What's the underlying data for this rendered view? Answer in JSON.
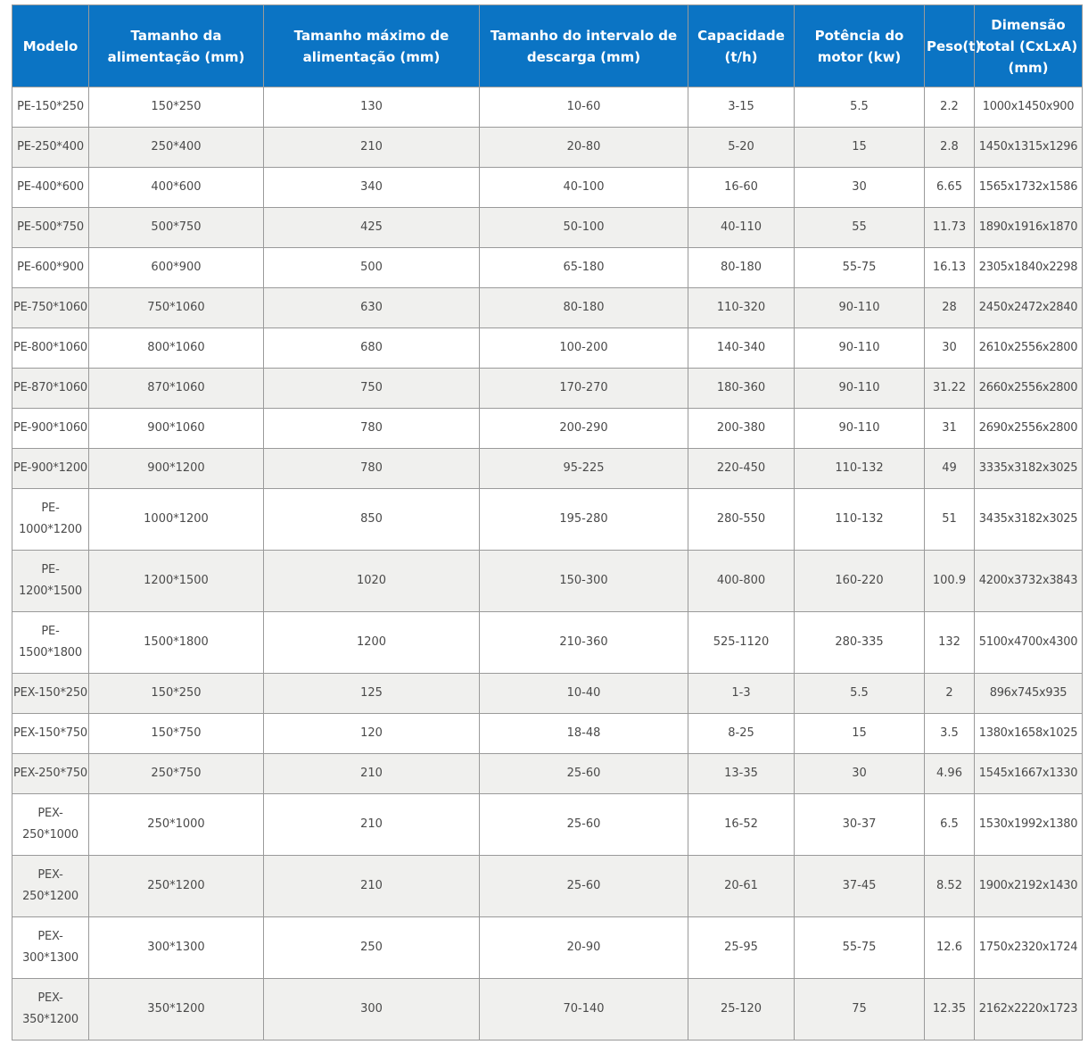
{
  "table": {
    "headers": [
      "Modelo",
      "Tamanho da alimentação (mm)",
      "Tamanho máximo de alimentação (mm)",
      "Tamanho do intervalo de descarga (mm)",
      "Capacidade (t/h)",
      "Potência do motor (kw)",
      "Peso(t)",
      "Dimensão total (CxLxA)(mm)"
    ],
    "rows": [
      [
        "PE-150*250",
        "150*250",
        "130",
        "10-60",
        "3-15",
        "5.5",
        "2.2",
        "1000x1450x900"
      ],
      [
        "PE-250*400",
        "250*400",
        "210",
        "20-80",
        "5-20",
        "15",
        "2.8",
        "1450x1315x1296"
      ],
      [
        "PE-400*600",
        "400*600",
        "340",
        "40-100",
        "16-60",
        "30",
        "6.65",
        "1565x1732x1586"
      ],
      [
        "PE-500*750",
        "500*750",
        "425",
        "50-100",
        "40-110",
        "55",
        "11.73",
        "1890x1916x1870"
      ],
      [
        "PE-600*900",
        "600*900",
        "500",
        "65-180",
        "80-180",
        "55-75",
        "16.13",
        "2305x1840x2298"
      ],
      [
        "PE-750*1060",
        "750*1060",
        "630",
        "80-180",
        "110-320",
        "90-110",
        "28",
        "2450x2472x2840"
      ],
      [
        "PE-800*1060",
        "800*1060",
        "680",
        "100-200",
        "140-340",
        "90-110",
        "30",
        "2610x2556x2800"
      ],
      [
        "PE-870*1060",
        "870*1060",
        "750",
        "170-270",
        "180-360",
        "90-110",
        "31.22",
        "2660x2556x2800"
      ],
      [
        "PE-900*1060",
        "900*1060",
        "780",
        "200-290",
        "200-380",
        "90-110",
        "31",
        "2690x2556x2800"
      ],
      [
        "PE-900*1200",
        "900*1200",
        "780",
        "95-225",
        "220-450",
        "110-132",
        "49",
        "3335x3182x3025"
      ],
      [
        "PE-1000*1200",
        "1000*1200",
        "850",
        "195-280",
        "280-550",
        "110-132",
        "51",
        "3435x3182x3025"
      ],
      [
        "PE-1200*1500",
        "1200*1500",
        "1020",
        "150-300",
        "400-800",
        "160-220",
        "100.9",
        "4200x3732x3843"
      ],
      [
        "PE-1500*1800",
        "1500*1800",
        "1200",
        "210-360",
        "525-1120",
        "280-335",
        "132",
        "5100x4700x4300"
      ],
      [
        "PEX-150*250",
        "150*250",
        "125",
        "10-40",
        "1-3",
        "5.5",
        "2",
        "896x745x935"
      ],
      [
        "PEX-150*750",
        "150*750",
        "120",
        "18-48",
        "8-25",
        "15",
        "3.5",
        "1380x1658x1025"
      ],
      [
        "PEX-250*750",
        "250*750",
        "210",
        "25-60",
        "13-35",
        "30",
        "4.96",
        "1545x1667x1330"
      ],
      [
        "PEX-250*1000",
        "250*1000",
        "210",
        "25-60",
        "16-52",
        "30-37",
        "6.5",
        "1530x1992x1380"
      ],
      [
        "PEX-250*1200",
        "250*1200",
        "210",
        "25-60",
        "20-61",
        "37-45",
        "8.52",
        "1900x2192x1430"
      ],
      [
        "PEX-300*1300",
        "300*1300",
        "250",
        "20-90",
        "25-95",
        "55-75",
        "12.6",
        "1750x2320x1724"
      ],
      [
        "PEX-350*1200",
        "350*1200",
        "300",
        "70-140",
        "25-120",
        "75",
        "12.35",
        "2162x2220x1723"
      ]
    ]
  }
}
